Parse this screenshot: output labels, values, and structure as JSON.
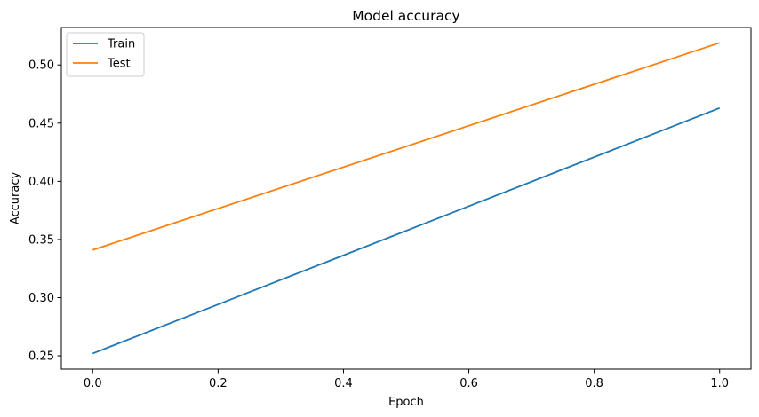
{
  "chart_data": {
    "type": "line",
    "title": "Model accuracy",
    "xlabel": "Epoch",
    "ylabel": "Accuracy",
    "x": [
      0,
      1
    ],
    "xlim": [
      -0.05,
      1.05
    ],
    "ylim": [
      0.2386,
      0.5322
    ],
    "xticks": [
      0.0,
      0.2,
      0.4,
      0.6,
      0.8,
      1.0
    ],
    "xtick_labels": [
      "0.0",
      "0.2",
      "0.4",
      "0.6",
      "0.8",
      "1.0"
    ],
    "yticks": [
      0.25,
      0.3,
      0.35,
      0.4,
      0.45,
      0.5
    ],
    "ytick_labels": [
      "0.25",
      "0.30",
      "0.35",
      "0.40",
      "0.45",
      "0.50"
    ],
    "grid": false,
    "legend_position": "top-left",
    "series": [
      {
        "name": "Train",
        "values": [
          0.252,
          0.463
        ],
        "color": "#1f77b4"
      },
      {
        "name": "Test",
        "values": [
          0.341,
          0.519
        ],
        "color": "#ff7f0e"
      }
    ]
  }
}
